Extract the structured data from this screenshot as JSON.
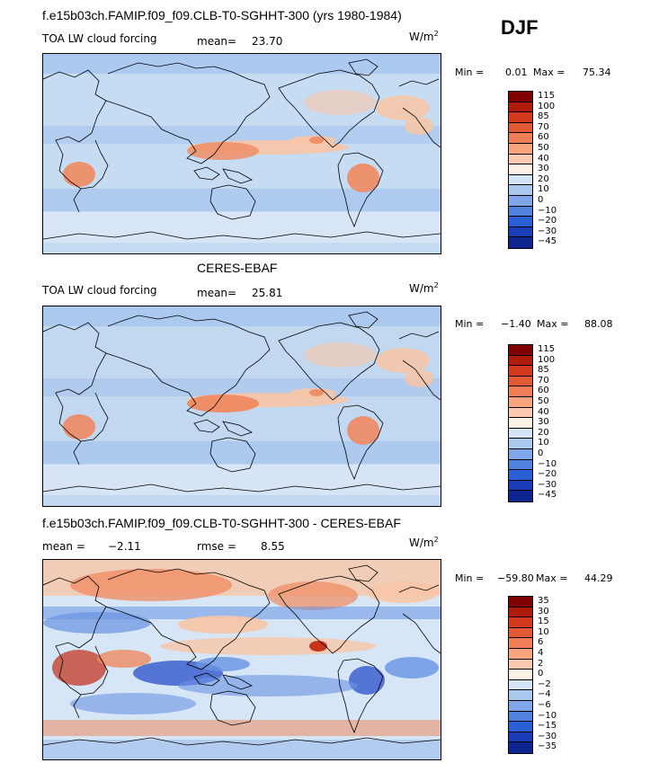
{
  "season": "DJF",
  "units_base": "W/m",
  "units_exp": "2",
  "panels": [
    {
      "id": "model",
      "title": "f.e15b03ch.FAMIP.f09_f09.CLB-T0-SGHHT-300 (yrs 1980-1984)",
      "left_label": "TOA LW cloud forcing",
      "stat1": "mean=",
      "stat1_value": "23.70",
      "stat2": "",
      "stat2_value": "",
      "min_label": "Min =",
      "min_value": "0.01",
      "max_label": "Max =",
      "max_value": "75.34",
      "colorbar_ticks": [
        "115",
        "100",
        "85",
        "70",
        "60",
        "50",
        "40",
        "30",
        "20",
        "10",
        "0",
        "−10",
        "−20",
        "−30",
        "−45"
      ]
    },
    {
      "id": "obs",
      "title": "CERES-EBAF",
      "left_label": "TOA LW cloud forcing",
      "stat1": "mean=",
      "stat1_value": "25.81",
      "stat2": "",
      "stat2_value": "",
      "min_label": "Min =",
      "min_value": "−1.40",
      "max_label": "Max =",
      "max_value": "88.08",
      "colorbar_ticks": [
        "115",
        "100",
        "85",
        "70",
        "60",
        "50",
        "40",
        "30",
        "20",
        "10",
        "0",
        "−10",
        "−20",
        "−30",
        "−45"
      ]
    },
    {
      "id": "diff",
      "title": "f.e15b03ch.FAMIP.f09_f09.CLB-T0-SGHHT-300 - CERES-EBAF",
      "left_label": "",
      "stat1": "mean =",
      "stat1_value": "−2.11",
      "stat2": "rmse =",
      "stat2_value": "8.55",
      "min_label": "Min =",
      "min_value": "−59.80",
      "max_label": "Max =",
      "max_value": "44.29",
      "colorbar_ticks": [
        "35",
        "30",
        "15",
        "10",
        "6",
        "4",
        "2",
        "0",
        "−2",
        "−4",
        "−6",
        "−10",
        "−15",
        "−30",
        "−35"
      ]
    }
  ],
  "colorbar_colors": [
    "#7f0000",
    "#b01c0c",
    "#d33a1e",
    "#e25a34",
    "#ef7d55",
    "#f8a47e",
    "#fccab0",
    "#faf0e6",
    "#d2e4f6",
    "#a8c8ee",
    "#7ea6e8",
    "#5182e0",
    "#2a5fd6",
    "#1a3eb8",
    "#0e2590"
  ],
  "map_colors": {
    "land_line": "#000000",
    "base_model": "#c6dcf2",
    "base_obs": "#c2d8f0",
    "base_diff": "#d6e6f6",
    "warm_light": "#f8c5a6",
    "warm_mid": "#ef8a60",
    "warm_dark": "#c22c14",
    "cool_light": "#a9c6ee",
    "cool_mid": "#6892e2",
    "cool_dark": "#1e45c6",
    "neutral": "#f4f2ee"
  }
}
